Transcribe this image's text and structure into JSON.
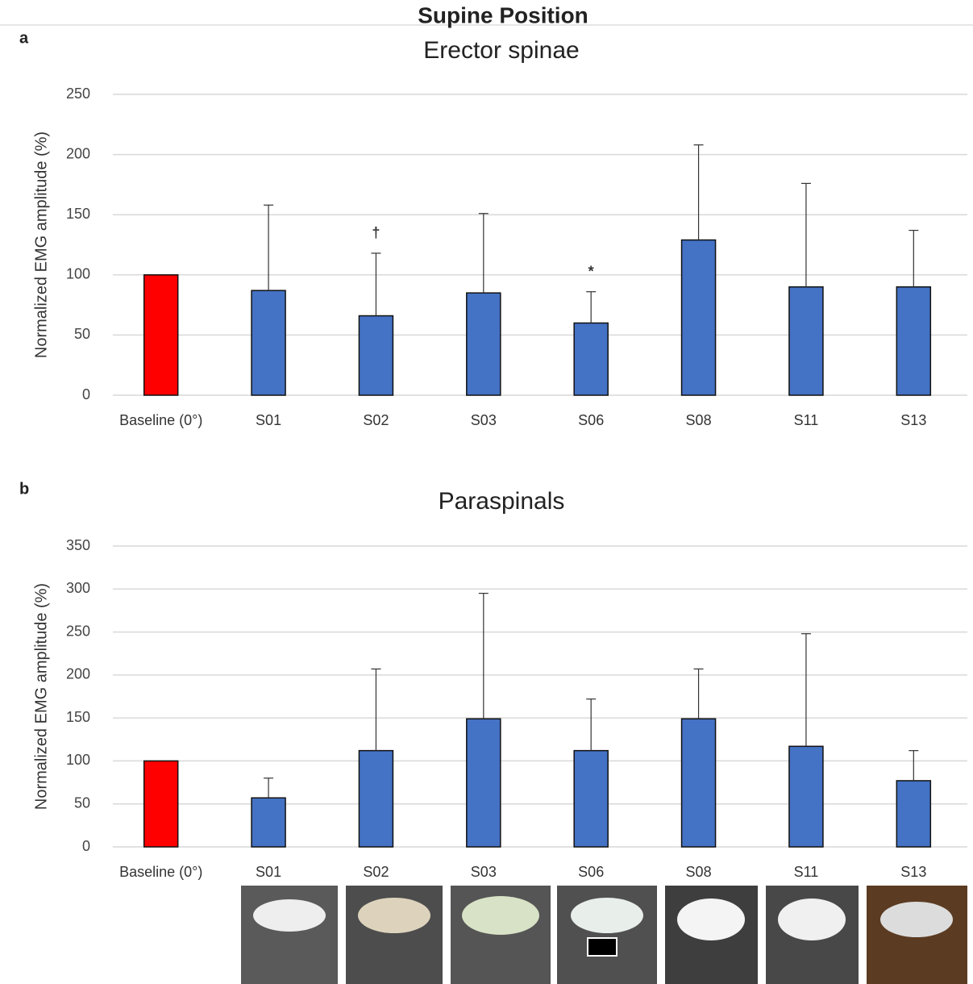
{
  "title": "Supine Position",
  "chart_data": [
    {
      "type": "bar",
      "panel": "a",
      "title": "Erector spinae",
      "y_label": "Normalized EMG amplitude (%)",
      "categories": [
        "Baseline (0°)",
        "S01",
        "S02",
        "S03",
        "S06",
        "S08",
        "S11",
        "S13"
      ],
      "values": [
        100,
        87,
        66,
        85,
        60,
        129,
        90,
        90
      ],
      "errors": [
        null,
        71,
        52,
        66,
        26,
        79,
        86,
        47
      ],
      "colors": [
        "#ff0000",
        "#4472c4",
        "#4472c4",
        "#4472c4",
        "#4472c4",
        "#4472c4",
        "#4472c4",
        "#4472c4"
      ],
      "annotations": [
        {
          "text": "†",
          "category": "S02"
        },
        {
          "text": "*",
          "category": "S06"
        }
      ],
      "ylim": [
        0,
        250
      ],
      "yticks": [
        0,
        50,
        100,
        150,
        200,
        250
      ],
      "grid": true
    },
    {
      "type": "bar",
      "panel": "b",
      "title": "Paraspinals",
      "y_label": "Normalized EMG amplitude (%)",
      "categories": [
        "Baseline (0°)",
        "S01",
        "S02",
        "S03",
        "S06",
        "S08",
        "S11",
        "S13"
      ],
      "values": [
        100,
        57,
        112,
        149,
        112,
        149,
        117,
        77
      ],
      "errors": [
        null,
        23,
        95,
        146,
        60,
        58,
        131,
        35
      ],
      "colors": [
        "#ff0000",
        "#4472c4",
        "#4472c4",
        "#4472c4",
        "#4472c4",
        "#4472c4",
        "#4472c4",
        "#4472c4"
      ],
      "ylim": [
        0,
        350
      ],
      "yticks": [
        0,
        50,
        100,
        150,
        200,
        250,
        300,
        350
      ],
      "grid": true
    }
  ]
}
